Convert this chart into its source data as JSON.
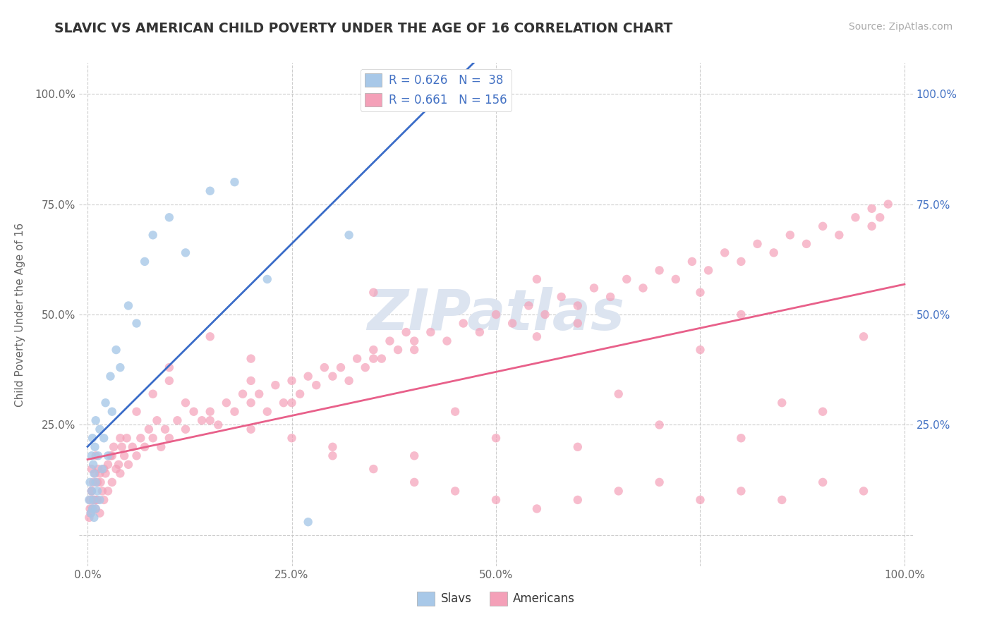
{
  "title": "SLAVIC VS AMERICAN CHILD POVERTY UNDER THE AGE OF 16 CORRELATION CHART",
  "source": "Source: ZipAtlas.com",
  "ylabel": "Child Poverty Under the Age of 16",
  "watermark": "ZIPatlas",
  "xlim": [
    -0.01,
    1.01
  ],
  "ylim": [
    -0.07,
    1.07
  ],
  "slavic_R": 0.626,
  "slavic_N": 38,
  "american_R": 0.661,
  "american_N": 156,
  "slavic_color": "#a8c8e8",
  "american_color": "#f4a0b8",
  "slavic_line_color": "#3a6cc8",
  "american_line_color": "#e8608a",
  "right_tick_color": "#4472c4",
  "background_color": "#ffffff",
  "grid_color": "#c8c8c8",
  "title_color": "#333333",
  "watermark_color": "#dce4f0",
  "slavs_label": "Slavs",
  "americans_label": "Americans",
  "slavic_x": [
    0.002,
    0.003,
    0.004,
    0.005,
    0.005,
    0.006,
    0.006,
    0.007,
    0.007,
    0.008,
    0.008,
    0.009,
    0.01,
    0.01,
    0.01,
    0.012,
    0.013,
    0.015,
    0.015,
    0.018,
    0.02,
    0.022,
    0.025,
    0.028,
    0.03,
    0.035,
    0.04,
    0.05,
    0.06,
    0.07,
    0.08,
    0.1,
    0.12,
    0.15,
    0.18,
    0.22,
    0.27,
    0.32
  ],
  "slavic_y": [
    0.08,
    0.12,
    0.05,
    0.1,
    0.18,
    0.06,
    0.22,
    0.08,
    0.16,
    0.04,
    0.14,
    0.2,
    0.06,
    0.12,
    0.26,
    0.1,
    0.18,
    0.08,
    0.24,
    0.15,
    0.22,
    0.3,
    0.18,
    0.36,
    0.28,
    0.42,
    0.38,
    0.52,
    0.48,
    0.62,
    0.68,
    0.72,
    0.64,
    0.78,
    0.8,
    0.58,
    0.03,
    0.68
  ],
  "american_x": [
    0.002,
    0.003,
    0.004,
    0.005,
    0.005,
    0.006,
    0.007,
    0.008,
    0.009,
    0.01,
    0.01,
    0.012,
    0.013,
    0.015,
    0.016,
    0.018,
    0.02,
    0.022,
    0.025,
    0.028,
    0.03,
    0.032,
    0.035,
    0.038,
    0.04,
    0.042,
    0.045,
    0.048,
    0.05,
    0.055,
    0.06,
    0.065,
    0.07,
    0.075,
    0.08,
    0.085,
    0.09,
    0.095,
    0.1,
    0.11,
    0.12,
    0.13,
    0.14,
    0.15,
    0.16,
    0.17,
    0.18,
    0.19,
    0.2,
    0.21,
    0.22,
    0.23,
    0.24,
    0.25,
    0.26,
    0.27,
    0.28,
    0.29,
    0.3,
    0.31,
    0.32,
    0.33,
    0.34,
    0.35,
    0.36,
    0.37,
    0.38,
    0.39,
    0.4,
    0.42,
    0.44,
    0.46,
    0.48,
    0.5,
    0.52,
    0.54,
    0.56,
    0.58,
    0.6,
    0.62,
    0.64,
    0.66,
    0.68,
    0.7,
    0.72,
    0.74,
    0.76,
    0.78,
    0.8,
    0.82,
    0.84,
    0.86,
    0.88,
    0.9,
    0.92,
    0.94,
    0.96,
    0.96,
    0.97,
    0.98,
    0.003,
    0.005,
    0.007,
    0.012,
    0.02,
    0.03,
    0.01,
    0.015,
    0.025,
    0.04,
    0.06,
    0.08,
    0.1,
    0.12,
    0.15,
    0.2,
    0.25,
    0.3,
    0.35,
    0.4,
    0.45,
    0.5,
    0.55,
    0.6,
    0.65,
    0.7,
    0.75,
    0.8,
    0.85,
    0.9,
    0.95,
    0.1,
    0.2,
    0.3,
    0.4,
    0.5,
    0.6,
    0.7,
    0.8,
    0.9,
    0.15,
    0.35,
    0.55,
    0.75,
    0.95,
    0.25,
    0.45,
    0.65,
    0.85,
    0.35,
    0.55,
    0.75,
    0.2,
    0.4,
    0.6,
    0.8
  ],
  "american_y": [
    0.04,
    0.08,
    0.05,
    0.1,
    0.15,
    0.06,
    0.12,
    0.08,
    0.14,
    0.06,
    0.18,
    0.08,
    0.15,
    0.05,
    0.12,
    0.1,
    0.08,
    0.14,
    0.1,
    0.18,
    0.12,
    0.2,
    0.15,
    0.16,
    0.14,
    0.2,
    0.18,
    0.22,
    0.16,
    0.2,
    0.18,
    0.22,
    0.2,
    0.24,
    0.22,
    0.26,
    0.2,
    0.24,
    0.22,
    0.26,
    0.24,
    0.28,
    0.26,
    0.28,
    0.25,
    0.3,
    0.28,
    0.32,
    0.3,
    0.32,
    0.28,
    0.34,
    0.3,
    0.35,
    0.32,
    0.36,
    0.34,
    0.38,
    0.36,
    0.38,
    0.35,
    0.4,
    0.38,
    0.42,
    0.4,
    0.44,
    0.42,
    0.46,
    0.44,
    0.46,
    0.44,
    0.48,
    0.46,
    0.5,
    0.48,
    0.52,
    0.5,
    0.54,
    0.52,
    0.56,
    0.54,
    0.58,
    0.56,
    0.6,
    0.58,
    0.62,
    0.6,
    0.64,
    0.62,
    0.66,
    0.64,
    0.68,
    0.66,
    0.7,
    0.68,
    0.72,
    0.7,
    0.74,
    0.72,
    0.75,
    0.06,
    0.1,
    0.08,
    0.12,
    0.15,
    0.18,
    0.08,
    0.14,
    0.16,
    0.22,
    0.28,
    0.32,
    0.35,
    0.3,
    0.26,
    0.24,
    0.22,
    0.18,
    0.15,
    0.12,
    0.1,
    0.08,
    0.06,
    0.08,
    0.1,
    0.12,
    0.08,
    0.1,
    0.08,
    0.12,
    0.1,
    0.38,
    0.35,
    0.2,
    0.18,
    0.22,
    0.2,
    0.25,
    0.22,
    0.28,
    0.45,
    0.4,
    0.45,
    0.42,
    0.45,
    0.3,
    0.28,
    0.32,
    0.3,
    0.55,
    0.58,
    0.55,
    0.4,
    0.42,
    0.48,
    0.5
  ]
}
